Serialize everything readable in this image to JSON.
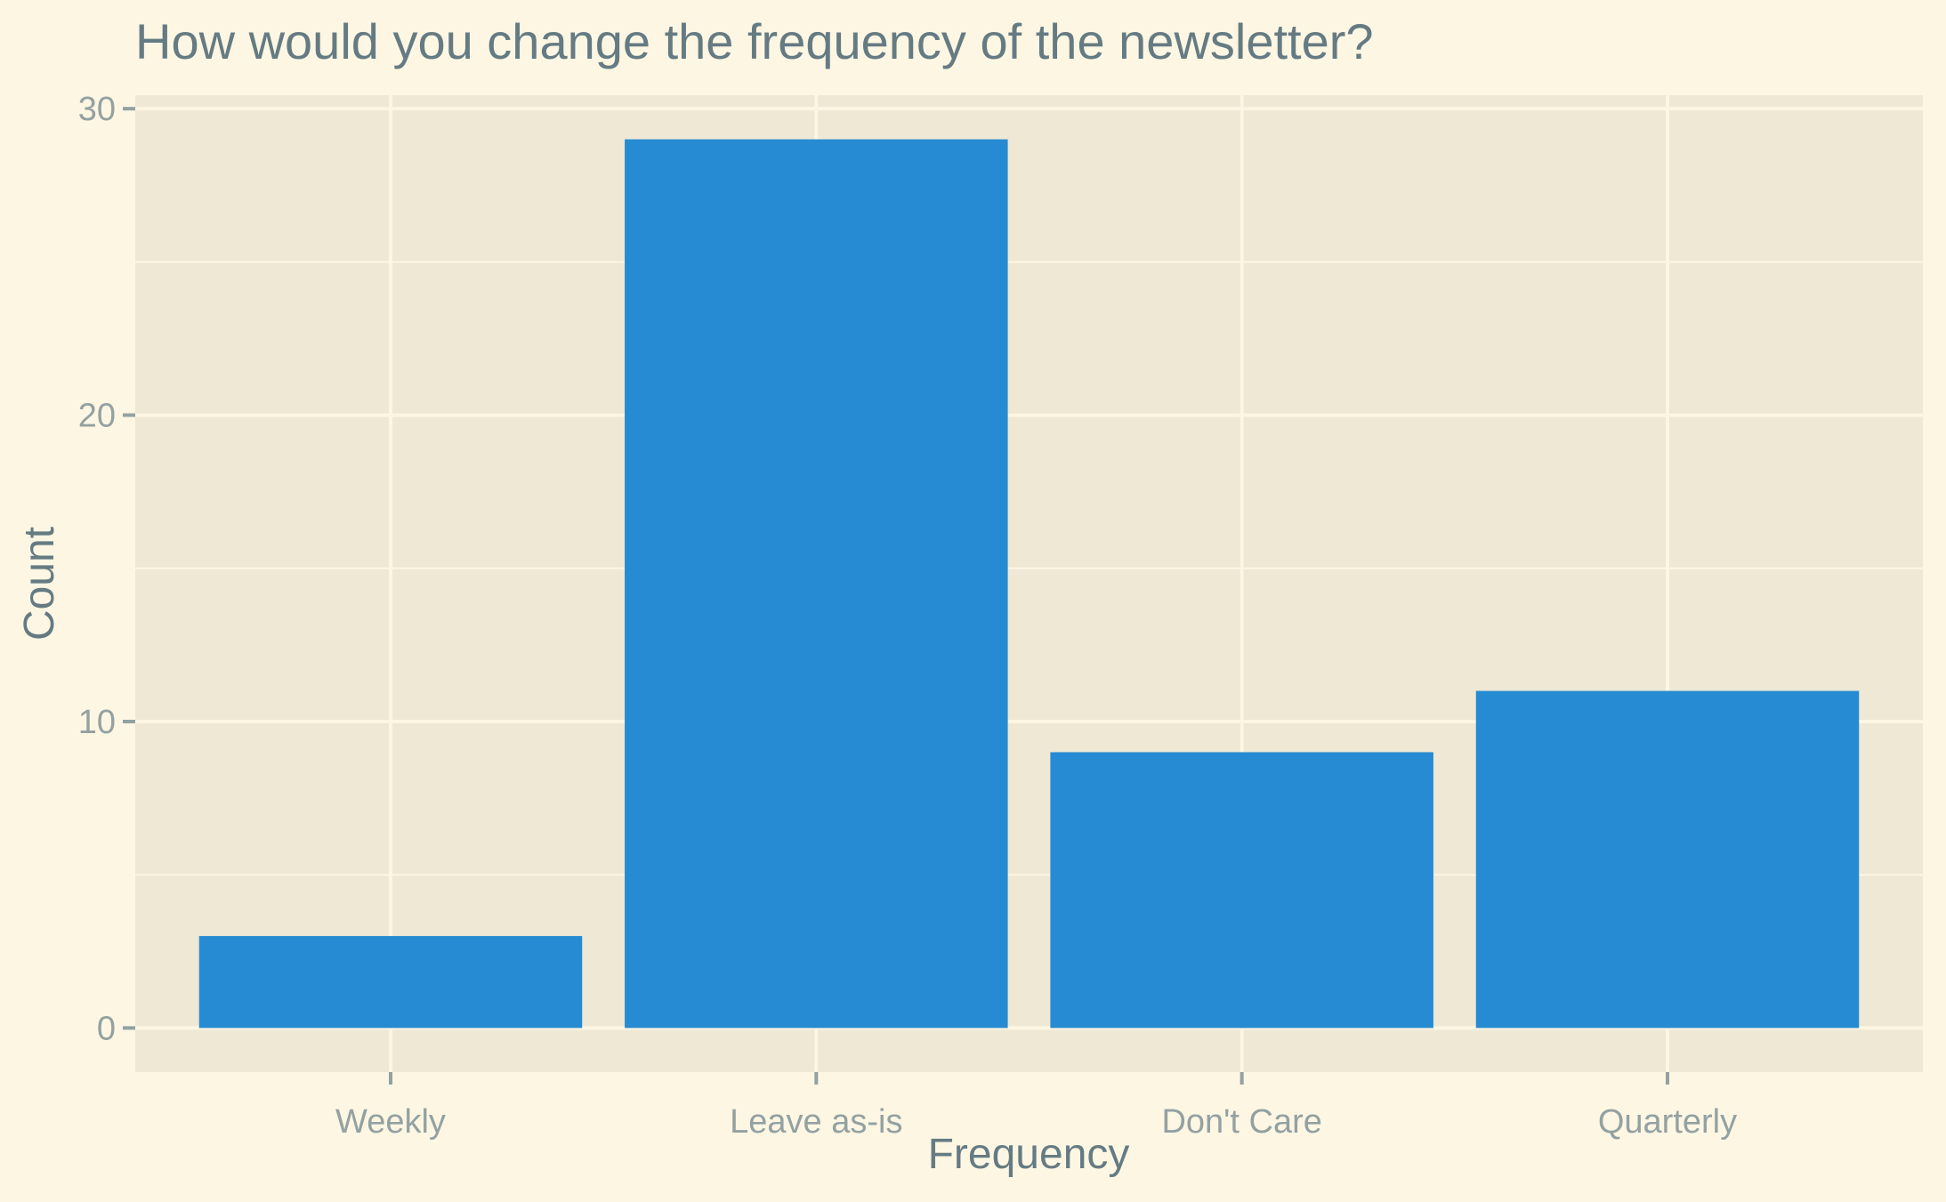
{
  "chart_data": {
    "type": "bar",
    "title": "How would you change the frequency of the newsletter?",
    "xlabel": "Frequency",
    "ylabel": "Count",
    "categories": [
      "Weekly",
      "Leave as-is",
      "Don't Care",
      "Quarterly"
    ],
    "values": [
      3,
      29,
      9,
      11
    ],
    "ylim": [
      -1.44,
      30.44
    ],
    "yticks": [
      0,
      10,
      20,
      30
    ],
    "grid": true,
    "legend": "none",
    "colors": {
      "bar": "#268bd2",
      "panel": "#eee8d5",
      "background": "#fdf6e3",
      "grid": "#fdf6e3",
      "title_text": "#657b83",
      "tick_text": "#93a1a1",
      "tick_mark": "#93a1a1"
    }
  }
}
